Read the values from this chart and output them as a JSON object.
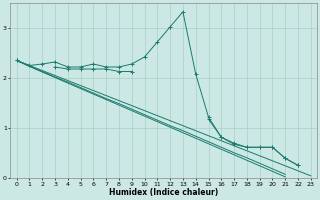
{
  "xlabel": "Humidex (Indice chaleur)",
  "x_values": [
    0,
    1,
    2,
    3,
    4,
    5,
    6,
    7,
    8,
    9,
    10,
    11,
    12,
    13,
    14,
    15,
    16,
    17,
    18,
    19,
    20,
    21,
    22,
    23
  ],
  "line_upper": [
    2.35,
    2.25,
    2.28,
    2.32,
    2.22,
    2.22,
    2.28,
    2.22,
    2.22,
    2.28,
    2.42,
    2.72,
    3.02,
    3.32,
    2.08,
    1.22,
    0.82,
    0.7,
    0.62,
    0.62,
    0.62,
    0.4,
    0.26,
    null
  ],
  "line_marker": [
    2.35,
    null,
    null,
    2.22,
    2.18,
    2.18,
    2.18,
    2.18,
    2.13,
    2.13,
    null,
    null,
    null,
    null,
    null,
    1.18,
    0.82,
    0.68,
    0.62,
    0.62,
    0.62,
    0.4,
    0.26,
    null
  ],
  "line_straight1": [
    2.35,
    2.23,
    2.12,
    2.01,
    1.9,
    1.79,
    1.68,
    1.57,
    1.46,
    1.35,
    1.24,
    1.13,
    1.02,
    0.91,
    0.8,
    0.69,
    0.58,
    0.47,
    0.36,
    0.25,
    0.14,
    0.03,
    null,
    null
  ],
  "line_straight2": [
    2.35,
    2.24,
    2.13,
    2.02,
    1.92,
    1.81,
    1.7,
    1.59,
    1.49,
    1.38,
    1.27,
    1.16,
    1.05,
    0.95,
    0.84,
    0.73,
    0.62,
    0.51,
    0.41,
    0.3,
    0.19,
    0.08,
    null,
    null
  ],
  "line_straight3": [
    2.35,
    2.25,
    2.15,
    2.05,
    1.95,
    1.85,
    1.75,
    1.65,
    1.55,
    1.45,
    1.35,
    1.25,
    1.15,
    1.05,
    0.95,
    0.85,
    0.75,
    0.65,
    0.55,
    0.45,
    0.35,
    0.25,
    0.15,
    0.05
  ],
  "bg_color": "#cce8e4",
  "grid_color": "#aacfcb",
  "line_color": "#1a7a6e",
  "ylim": [
    0.0,
    3.5
  ],
  "xlim": [
    -0.5,
    23.5
  ],
  "yticks": [
    0,
    1,
    2,
    3
  ],
  "xticks": [
    0,
    1,
    2,
    3,
    4,
    5,
    6,
    7,
    8,
    9,
    10,
    11,
    12,
    13,
    14,
    15,
    16,
    17,
    18,
    19,
    20,
    21,
    22,
    23
  ]
}
